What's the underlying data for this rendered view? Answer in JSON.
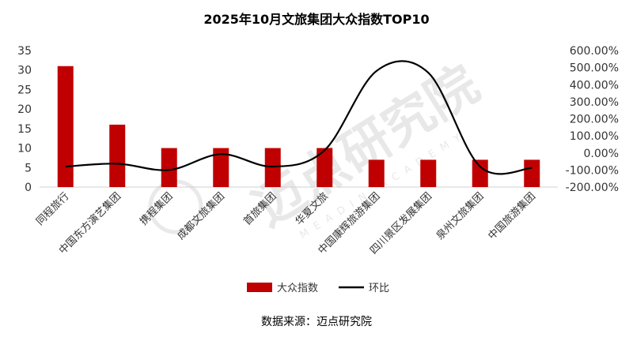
{
  "chart_data": {
    "type": "bar",
    "title": "2025年10月文旅集团大众指数TOP10",
    "categories": [
      "同程旅行",
      "中国东方演艺集团",
      "携程集团",
      "成都文旅集团",
      "首旅集团",
      "华夏文旅",
      "中国康辉旅游集团",
      "四川景区发展集团",
      "泉州文旅集团",
      "中国旅游集团"
    ],
    "series": [
      {
        "name": "大众指数",
        "type": "bar",
        "axis": "left",
        "color": "#c00000",
        "values": [
          31,
          16,
          10,
          10,
          10,
          10,
          7,
          7,
          7,
          7
        ]
      },
      {
        "name": "环比",
        "type": "line",
        "axis": "right",
        "color": "#000000",
        "values": [
          -80,
          -63,
          -100,
          -7,
          -80,
          16,
          480,
          470,
          -80,
          -88
        ]
      }
    ],
    "y_left": {
      "min": 0,
      "max": 35,
      "step": 5,
      "ticks": [
        "0",
        "5",
        "10",
        "15",
        "20",
        "25",
        "30",
        "35"
      ]
    },
    "y_right": {
      "min": -200,
      "max": 600,
      "step": 100,
      "ticks": [
        "-200.00%",
        "-100.00%",
        "0.00%",
        "100.00%",
        "200.00%",
        "300.00%",
        "400.00%",
        "500.00%",
        "600.00%"
      ]
    },
    "legend": {
      "position": "bottom",
      "items": [
        "大众指数",
        "环比"
      ]
    },
    "watermark": "迈点研究院 MEADIN ACADEMY",
    "source": "数据来源：迈点研究院"
  }
}
